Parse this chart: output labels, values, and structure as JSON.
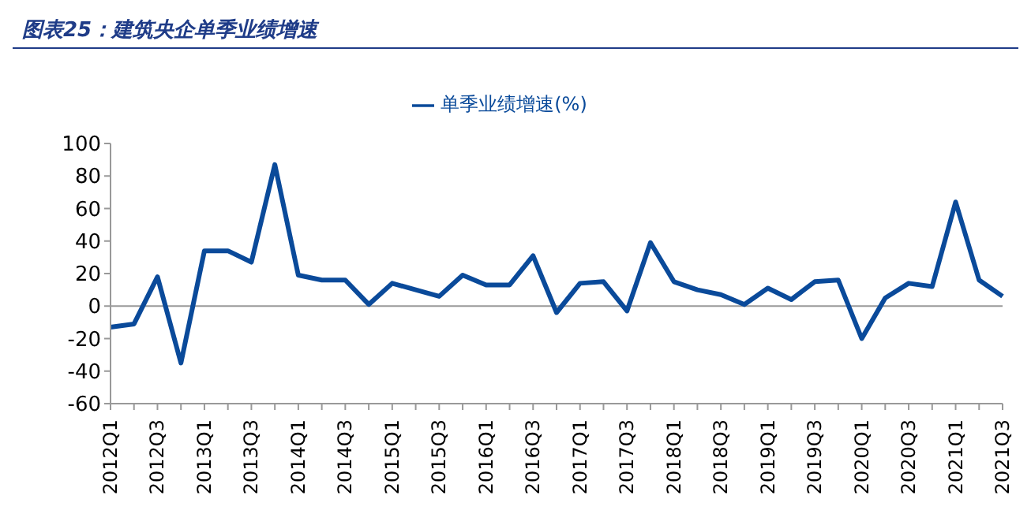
{
  "chart_data": {
    "type": "line",
    "title": "图表25：建筑央企单季业绩增速",
    "categories": [
      "2012Q1",
      null,
      "2012Q3",
      null,
      "2013Q1",
      null,
      "2013Q3",
      null,
      "2014Q1",
      null,
      "2014Q3",
      null,
      "2015Q1",
      null,
      "2015Q3",
      null,
      "2016Q1",
      null,
      "2016Q3",
      null,
      "2017Q1",
      null,
      "2017Q3",
      null,
      "2018Q1",
      null,
      "2018Q3",
      null,
      "2019Q1",
      null,
      "2019Q3",
      null,
      "2020Q1",
      null,
      "2020Q3",
      null,
      "2021Q1",
      null,
      "2021Q3"
    ],
    "series": [
      {
        "name": "单季业绩增速(%)",
        "color": "#0a4a9a",
        "values": [
          -13,
          -11,
          18,
          -35,
          34,
          34,
          27,
          87,
          19,
          16,
          16,
          1,
          14,
          10,
          6,
          19,
          13,
          13,
          31,
          -4,
          14,
          15,
          -3,
          39,
          15,
          10,
          7,
          1,
          11,
          4,
          15,
          16,
          -20,
          5,
          14,
          12,
          64,
          16,
          6
        ]
      }
    ],
    "ylim": [
      -60,
      100
    ],
    "yticks": [
      -60,
      -40,
      -20,
      0,
      20,
      40,
      60,
      80,
      100
    ],
    "ref_lines": [
      {
        "axis": "y",
        "value": 0,
        "color": "#999999"
      }
    ],
    "legend": "top",
    "marker": "none"
  }
}
